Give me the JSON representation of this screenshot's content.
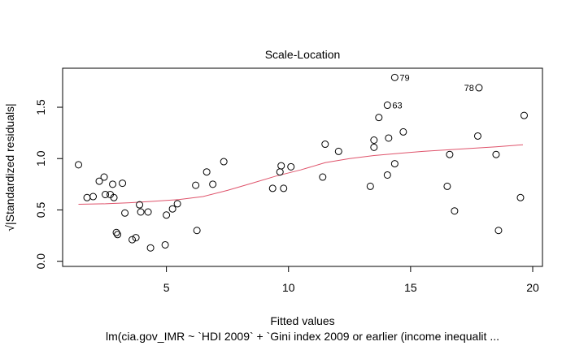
{
  "chart_data": {
    "type": "scatter",
    "title": "Scale-Location",
    "xlabel": "Fitted values",
    "ylabel": "√|Standardized residuals|",
    "subtitle": "lm(cia.gov_IMR ~ `HDI 2009` + `Gini index 2009 or earlier (income inequalit ...",
    "xlim": [
      0.75,
      20.4
    ],
    "ylim": [
      -0.05,
      1.88
    ],
    "x_ticks": [
      5,
      10,
      15,
      20
    ],
    "x_tick_labels": [
      "5",
      "10",
      "15",
      "20"
    ],
    "y_ticks": [
      0.0,
      0.5,
      1.0,
      1.5
    ],
    "y_tick_labels": [
      "0.0",
      "0.5",
      "1.0",
      "1.5"
    ],
    "grid": false,
    "colors": {
      "points": "#000000",
      "smooth_line": "#df536b"
    },
    "points": [
      {
        "x": 1.4,
        "y": 0.94
      },
      {
        "x": 1.75,
        "y": 0.62
      },
      {
        "x": 2.0,
        "y": 0.63
      },
      {
        "x": 2.25,
        "y": 0.78
      },
      {
        "x": 2.45,
        "y": 0.82
      },
      {
        "x": 2.5,
        "y": 0.65
      },
      {
        "x": 2.7,
        "y": 0.65
      },
      {
        "x": 2.8,
        "y": 0.75
      },
      {
        "x": 2.85,
        "y": 0.62
      },
      {
        "x": 2.95,
        "y": 0.28
      },
      {
        "x": 3.0,
        "y": 0.26
      },
      {
        "x": 3.2,
        "y": 0.76
      },
      {
        "x": 3.3,
        "y": 0.47
      },
      {
        "x": 3.6,
        "y": 0.21
      },
      {
        "x": 3.75,
        "y": 0.23
      },
      {
        "x": 3.9,
        "y": 0.55
      },
      {
        "x": 3.95,
        "y": 0.48
      },
      {
        "x": 4.25,
        "y": 0.48
      },
      {
        "x": 4.35,
        "y": 0.13
      },
      {
        "x": 4.95,
        "y": 0.16
      },
      {
        "x": 5.0,
        "y": 0.45
      },
      {
        "x": 5.25,
        "y": 0.51
      },
      {
        "x": 5.45,
        "y": 0.56
      },
      {
        "x": 6.2,
        "y": 0.74
      },
      {
        "x": 6.25,
        "y": 0.3
      },
      {
        "x": 6.65,
        "y": 0.87
      },
      {
        "x": 6.9,
        "y": 0.75
      },
      {
        "x": 7.35,
        "y": 0.97
      },
      {
        "x": 9.35,
        "y": 0.71
      },
      {
        "x": 9.65,
        "y": 0.87
      },
      {
        "x": 9.7,
        "y": 0.93
      },
      {
        "x": 9.8,
        "y": 0.71
      },
      {
        "x": 10.1,
        "y": 0.92
      },
      {
        "x": 11.4,
        "y": 0.82
      },
      {
        "x": 11.5,
        "y": 1.14
      },
      {
        "x": 12.05,
        "y": 1.07
      },
      {
        "x": 13.35,
        "y": 0.73
      },
      {
        "x": 13.5,
        "y": 1.18
      },
      {
        "x": 13.5,
        "y": 1.11
      },
      {
        "x": 13.7,
        "y": 1.4
      },
      {
        "x": 14.05,
        "y": 0.84
      },
      {
        "x": 14.1,
        "y": 1.2
      },
      {
        "x": 14.35,
        "y": 0.95
      },
      {
        "x": 14.7,
        "y": 1.26
      },
      {
        "x": 16.5,
        "y": 0.73
      },
      {
        "x": 16.6,
        "y": 1.04
      },
      {
        "x": 16.8,
        "y": 0.49
      },
      {
        "x": 17.75,
        "y": 1.22
      },
      {
        "x": 18.5,
        "y": 1.04
      },
      {
        "x": 18.6,
        "y": 0.3
      },
      {
        "x": 19.5,
        "y": 0.62
      },
      {
        "x": 19.65,
        "y": 1.42
      },
      {
        "x": 14.05,
        "y": 1.52,
        "label": "63"
      },
      {
        "x": 14.35,
        "y": 1.79,
        "label": "79"
      },
      {
        "x": 17.8,
        "y": 1.69,
        "label": "78"
      }
    ],
    "smooth_line": [
      [
        1.4,
        0.555
      ],
      [
        2.5,
        0.56
      ],
      [
        3.5,
        0.57
      ],
      [
        4.5,
        0.585
      ],
      [
        5.5,
        0.6
      ],
      [
        6.5,
        0.63
      ],
      [
        7.5,
        0.69
      ],
      [
        8.5,
        0.76
      ],
      [
        9.5,
        0.83
      ],
      [
        10.5,
        0.89
      ],
      [
        11.5,
        0.96
      ],
      [
        12.5,
        1.0
      ],
      [
        13.5,
        1.03
      ],
      [
        14.5,
        1.05
      ],
      [
        15.5,
        1.07
      ],
      [
        16.5,
        1.085
      ],
      [
        17.5,
        1.1
      ],
      [
        18.5,
        1.115
      ],
      [
        19.6,
        1.135
      ]
    ]
  }
}
